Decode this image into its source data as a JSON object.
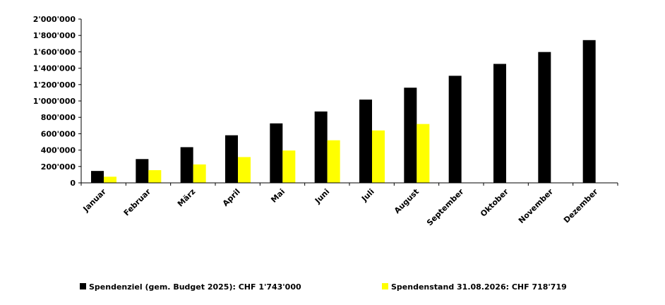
{
  "chart_data": {
    "type": "bar",
    "categories": [
      "Januar",
      "Februar",
      "März",
      "April",
      "Mai",
      "Juni",
      "Juli",
      "August",
      "September",
      "Oktober",
      "November",
      "Dezember"
    ],
    "series": [
      {
        "name": "Spendenziel (gem. Budget 2025): CHF 1'743'000",
        "color": "#000000",
        "values": [
          145250,
          290500,
          435750,
          581000,
          726250,
          871500,
          1016750,
          1162000,
          1307250,
          1452500,
          1597750,
          1743000
        ]
      },
      {
        "name": "Spendenstand 31.08.2026: CHF 718'719",
        "color": "#ffff00",
        "values": [
          75000,
          155000,
          225000,
          315000,
          395000,
          520000,
          640000,
          718719,
          null,
          null,
          null,
          null
        ]
      }
    ],
    "yticks": [
      "0",
      "200'000",
      "400'000",
      "600'000",
      "800'000",
      "1'000'000",
      "1'200'000",
      "1'400'000",
      "1'600'000",
      "1'800'000",
      "2'000'000"
    ],
    "ylim": [
      0,
      2000000
    ],
    "grid": false,
    "legend": "bottom"
  }
}
